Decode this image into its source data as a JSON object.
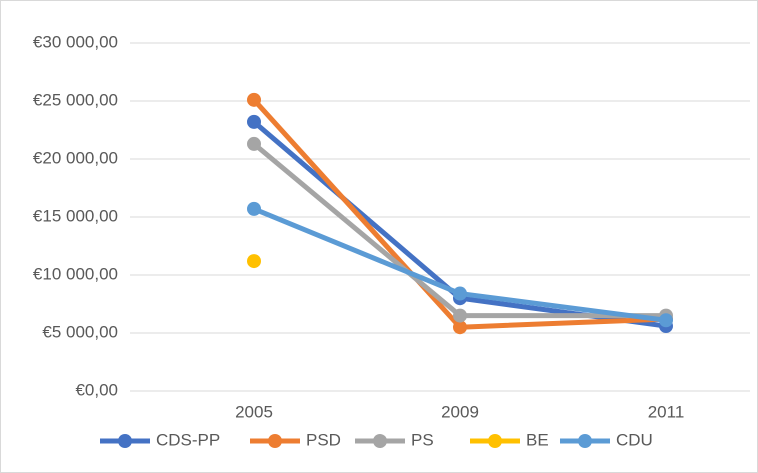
{
  "chart_data": {
    "type": "line",
    "categories": [
      "2005",
      "2009",
      "2011"
    ],
    "series": [
      {
        "name": "CDS-PP",
        "color": "#4472c4",
        "values": [
          23200,
          8000,
          5600
        ]
      },
      {
        "name": "PSD",
        "color": "#ed7d31",
        "values": [
          25100,
          5500,
          6200
        ]
      },
      {
        "name": "PS",
        "color": "#a5a5a5",
        "values": [
          21300,
          6500,
          6500
        ]
      },
      {
        "name": "BE",
        "color": "#ffc000",
        "values": [
          11200,
          null,
          null
        ]
      },
      {
        "name": "CDU",
        "color": "#5b9bd5",
        "values": [
          15700,
          8400,
          6100
        ]
      }
    ],
    "ylim": [
      0,
      30000
    ],
    "yticks": [
      {
        "value": 0,
        "label": "€0,00"
      },
      {
        "value": 5000,
        "label": "€5 000,00"
      },
      {
        "value": 10000,
        "label": "€10 000,00"
      },
      {
        "value": 15000,
        "label": "€15 000,00"
      },
      {
        "value": 20000,
        "label": "€20 000,00"
      },
      {
        "value": 25000,
        "label": "€25 000,00"
      },
      {
        "value": 30000,
        "label": "€30 000,00"
      }
    ],
    "grid": true,
    "legend": "bottom"
  }
}
